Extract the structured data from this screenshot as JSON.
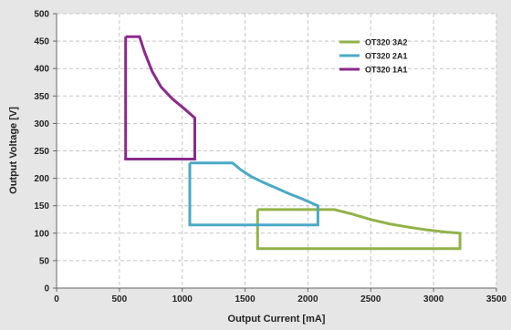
{
  "chart_data": {
    "type": "line",
    "xlabel": "Output Current [mA]",
    "ylabel": "Output Voltage [V]",
    "xlim": [
      0,
      3500
    ],
    "ylim": [
      0,
      500
    ],
    "xticks": [
      "0",
      "500",
      "1000",
      "1500",
      "2000",
      "2500",
      "3000",
      "3500"
    ],
    "yticks": [
      "0",
      "50",
      "100",
      "150",
      "200",
      "250",
      "300",
      "350",
      "400",
      "450",
      "500"
    ],
    "grid": true,
    "legend_position": "top-right",
    "series": [
      {
        "name": "OT320 3A2",
        "color": "#92b24a",
        "points": [
          [
            1600,
            143
          ],
          [
            2210,
            143
          ],
          [
            2350,
            135
          ],
          [
            2500,
            125
          ],
          [
            2650,
            117
          ],
          [
            2800,
            111
          ],
          [
            2950,
            106
          ],
          [
            3100,
            102
          ],
          [
            3210,
            100
          ],
          [
            3210,
            72
          ],
          [
            1600,
            72
          ],
          [
            1600,
            143
          ]
        ]
      },
      {
        "name": "OT320 2A1",
        "color": "#4aa9c8",
        "points": [
          [
            1060,
            228
          ],
          [
            1400,
            228
          ],
          [
            1470,
            215
          ],
          [
            1550,
            203
          ],
          [
            1650,
            192
          ],
          [
            1750,
            182
          ],
          [
            1850,
            172
          ],
          [
            1950,
            163
          ],
          [
            2080,
            150
          ],
          [
            2080,
            115
          ],
          [
            1060,
            115
          ],
          [
            1060,
            228
          ]
        ]
      },
      {
        "name": "OT320 1A1",
        "color": "#8b2a8c",
        "points": [
          [
            550,
            458
          ],
          [
            660,
            458
          ],
          [
            700,
            430
          ],
          [
            760,
            395
          ],
          [
            830,
            367
          ],
          [
            920,
            345
          ],
          [
            1020,
            326
          ],
          [
            1100,
            310
          ],
          [
            1100,
            235
          ],
          [
            550,
            235
          ],
          [
            550,
            458
          ]
        ]
      }
    ]
  }
}
